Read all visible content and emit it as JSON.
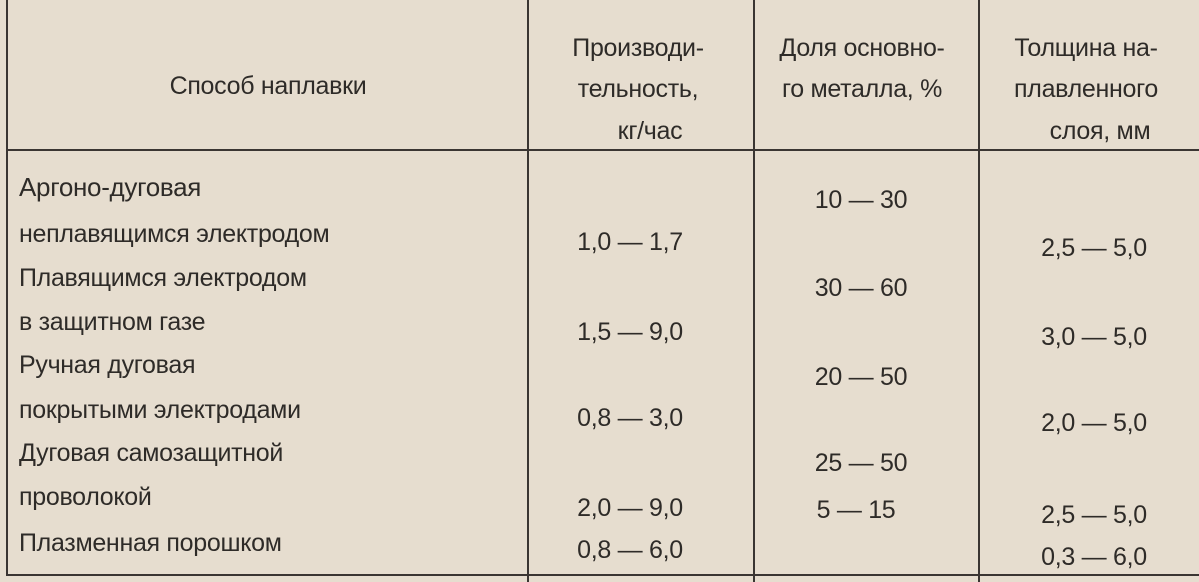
{
  "headers": {
    "method": "Способ наплавки",
    "productivity": [
      "Производи-",
      "тельность,",
      "кг/час"
    ],
    "base_metal_share": [
      "Доля основно-",
      "го металла, %"
    ],
    "layer_thickness": [
      "Толщина на-",
      "плавленного",
      "слоя, мм"
    ]
  },
  "method_lines": [
    "Аргоно-дуговая",
    "неплавящимся электродом",
    "Плавящимся электродом",
    "в защитном газе",
    "Ручная дуговая",
    "покрытыми электродами",
    "Дуговая самозащитной",
    "проволокой",
    "Плазменная порошком"
  ],
  "productivity": [
    "1,0 — 1,7",
    "1,5 — 9,0",
    "0,8 — 3,0",
    "2,0 — 9,0",
    "0,8 — 6,0"
  ],
  "base_metal_share": [
    "10 — 30",
    "30 — 60",
    "20 — 50",
    "25 — 50",
    "5 — 15"
  ],
  "layer_thickness": [
    "2,5 — 5,0",
    "3,0 — 5,0",
    "2,0 — 5,0",
    "2,5 — 5,0",
    "0,3 — 6,0"
  ]
}
